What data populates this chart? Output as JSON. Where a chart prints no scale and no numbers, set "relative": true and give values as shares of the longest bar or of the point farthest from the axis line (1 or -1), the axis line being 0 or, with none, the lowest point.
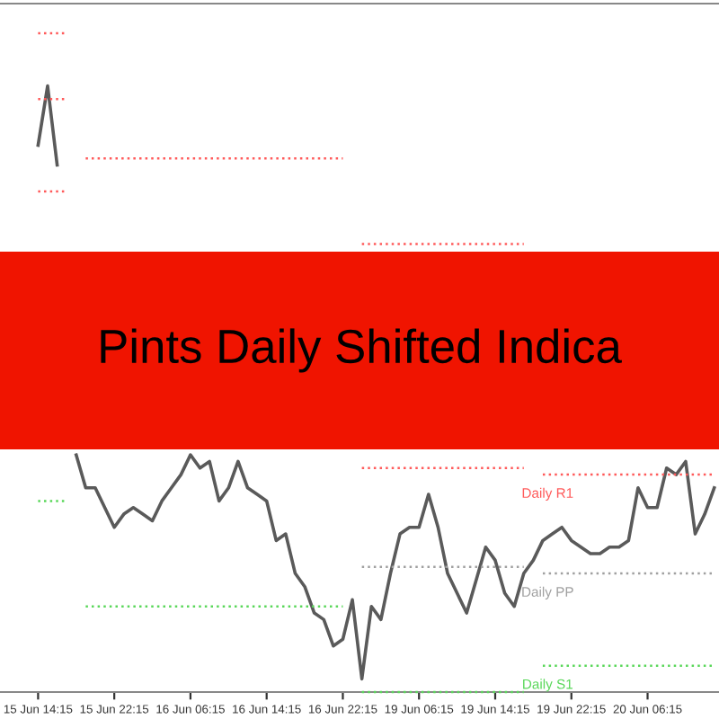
{
  "chart_data": {
    "type": "line",
    "relative": true,
    "title": "Pints Daily Shifted Indica",
    "categories": [
      "15 Jun 14:15",
      null,
      null,
      null,
      null,
      null,
      null,
      null,
      "15 Jun 22:15",
      null,
      null,
      null,
      null,
      null,
      null,
      null,
      "16 Jun 06:15",
      null,
      null,
      null,
      null,
      null,
      null,
      null,
      "16 Jun 14:15",
      null,
      null,
      null,
      null,
      null,
      null,
      null,
      "16 Jun 22:15",
      null,
      null,
      null,
      null,
      null,
      null,
      null,
      "19 Jun 06:15",
      null,
      null,
      null,
      null,
      null,
      null,
      null,
      "19 Jun 14:15",
      null,
      null,
      null,
      null,
      null,
      null,
      null,
      "19 Jun 22:15",
      null,
      null,
      null,
      null,
      null,
      null,
      null,
      "20 Jun 06:15",
      null,
      null,
      null,
      null,
      null,
      null,
      null
    ],
    "series": [
      {
        "color": "#5a5a5a",
        "line_style": "solid",
        "values": [
          0.83,
          0.92,
          0.8,
          null,
          0.36,
          0.31,
          0.31,
          0.28,
          0.25,
          0.27,
          0.28,
          0.27,
          0.26,
          0.29,
          0.31,
          0.33,
          0.36,
          0.34,
          0.35,
          0.29,
          0.31,
          0.35,
          0.31,
          0.3,
          0.29,
          0.23,
          0.24,
          0.18,
          0.16,
          0.12,
          0.11,
          0.07,
          0.08,
          0.14,
          0.02,
          0.13,
          0.11,
          0.18,
          0.24,
          0.25,
          0.25,
          0.3,
          0.25,
          0.18,
          0.15,
          0.12,
          0.17,
          0.22,
          0.2,
          0.15,
          0.13,
          0.18,
          0.2,
          0.23,
          0.24,
          0.25,
          0.23,
          0.22,
          0.21,
          0.21,
          0.22,
          0.22,
          0.23,
          0.31,
          0.28,
          0.28,
          0.34,
          0.33,
          0.35,
          0.24,
          0.27,
          0.31
        ]
      },
      {
        "color": "#ff5a5a",
        "line_style": "dotted",
        "values": [
          1.0,
          1.0,
          1.0,
          1.0,
          null,
          null,
          null,
          null,
          null,
          null,
          null,
          null,
          null,
          null,
          null,
          null,
          null,
          null,
          null,
          null,
          null,
          null,
          null,
          null,
          null,
          null,
          null,
          null,
          null,
          null,
          null,
          null,
          null,
          null,
          null,
          null,
          null,
          null,
          null,
          null,
          null,
          null,
          null,
          null,
          null,
          null,
          null,
          null,
          null,
          null,
          null,
          null,
          null,
          null,
          null,
          null,
          null,
          null,
          null,
          null,
          null,
          null,
          null,
          null,
          null,
          null,
          null,
          null,
          null,
          null,
          null,
          null
        ]
      },
      {
        "color": "#ff5a5a",
        "line_style": "dotted",
        "values": [
          0.9,
          0.9,
          0.9,
          0.9,
          null,
          0.81,
          0.81,
          0.81,
          0.81,
          0.81,
          0.81,
          0.81,
          0.81,
          0.81,
          0.81,
          0.81,
          0.81,
          0.81,
          0.81,
          0.81,
          0.81,
          0.81,
          0.81,
          0.81,
          0.81,
          0.81,
          0.81,
          0.81,
          0.81,
          0.81,
          0.81,
          0.81,
          0.81,
          null,
          0.68,
          0.68,
          0.68,
          0.68,
          0.68,
          0.68,
          0.68,
          0.68,
          0.68,
          0.68,
          0.68,
          0.68,
          0.68,
          0.68,
          0.68,
          0.68,
          0.68,
          0.68,
          null,
          null,
          null,
          null,
          null,
          null,
          null,
          null,
          null,
          null,
          null,
          null,
          null,
          null,
          null,
          null,
          null,
          null,
          null,
          null
        ]
      },
      {
        "name": "Daily R1",
        "color": "#ff5a5a",
        "line_style": "dotted",
        "values": [
          0.76,
          0.76,
          0.76,
          0.76,
          null,
          null,
          null,
          null,
          null,
          null,
          null,
          null,
          null,
          null,
          null,
          null,
          null,
          null,
          null,
          null,
          null,
          null,
          null,
          null,
          null,
          null,
          null,
          null,
          null,
          null,
          null,
          null,
          null,
          null,
          0.34,
          0.34,
          0.34,
          0.34,
          0.34,
          0.34,
          0.34,
          0.34,
          0.34,
          0.34,
          0.34,
          0.34,
          0.34,
          0.34,
          0.34,
          0.34,
          0.34,
          0.34,
          null,
          0.33,
          0.33,
          0.33,
          0.33,
          0.33,
          0.33,
          0.33,
          0.33,
          0.33,
          0.33,
          0.33,
          0.33,
          0.33,
          0.33,
          0.33,
          0.33,
          0.33,
          0.33,
          0.33
        ]
      },
      {
        "name": "Daily PP",
        "color": "#a0a0a0",
        "line_style": "dotted",
        "values": [
          null,
          null,
          null,
          null,
          null,
          null,
          null,
          null,
          null,
          null,
          null,
          null,
          null,
          null,
          null,
          null,
          null,
          null,
          null,
          null,
          null,
          null,
          null,
          null,
          null,
          null,
          null,
          null,
          null,
          null,
          null,
          null,
          null,
          null,
          0.19,
          0.19,
          0.19,
          0.19,
          0.19,
          0.19,
          0.19,
          0.19,
          0.19,
          0.19,
          0.19,
          0.19,
          0.19,
          0.19,
          0.19,
          0.19,
          0.19,
          0.19,
          null,
          0.18,
          0.18,
          0.18,
          0.18,
          0.18,
          0.18,
          0.18,
          0.18,
          0.18,
          0.18,
          0.18,
          0.18,
          0.18,
          0.18,
          0.18,
          0.18,
          0.18,
          0.18,
          0.18
        ]
      },
      {
        "name": "Daily S1",
        "color": "#5ad75a",
        "line_style": "dotted",
        "values": [
          0.29,
          0.29,
          0.29,
          0.29,
          null,
          0.13,
          0.13,
          0.13,
          0.13,
          0.13,
          0.13,
          0.13,
          0.13,
          0.13,
          0.13,
          0.13,
          0.13,
          0.13,
          0.13,
          0.13,
          0.13,
          0.13,
          0.13,
          0.13,
          0.13,
          0.13,
          0.13,
          0.13,
          0.13,
          0.13,
          0.13,
          0.13,
          0.13,
          null,
          0.0,
          0.0,
          0.0,
          0.0,
          0.0,
          0.0,
          0.0,
          0.0,
          0.0,
          0.0,
          0.0,
          0.0,
          0.0,
          0.0,
          0.0,
          0.0,
          0.0,
          0.0,
          null,
          0.04,
          0.04,
          0.04,
          0.04,
          0.04,
          0.04,
          0.04,
          0.04,
          0.04,
          0.04,
          0.04,
          0.04,
          0.04,
          0.04,
          0.04,
          0.04,
          0.04,
          0.04,
          0.04
        ]
      }
    ]
  }
}
